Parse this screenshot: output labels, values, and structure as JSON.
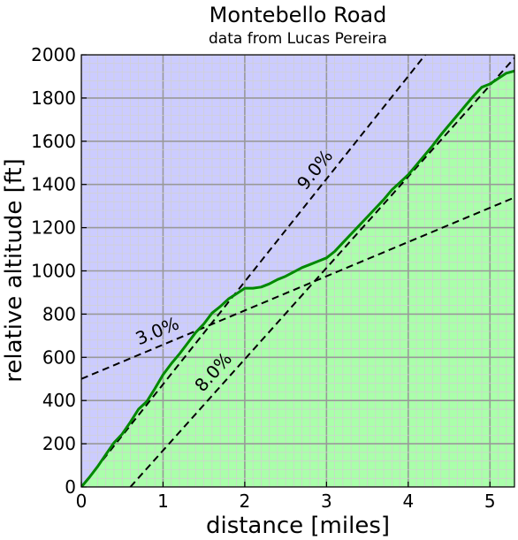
{
  "chart_data": {
    "type": "area",
    "title": "Montebello Road",
    "subtitle": "data from Lucas Pereira",
    "xlabel": "distance [miles]",
    "ylabel": "relative altitude [ft]",
    "xlim": [
      0,
      5.3
    ],
    "ylim": [
      0,
      2000
    ],
    "xticks": [
      0,
      1,
      2,
      3,
      4,
      5
    ],
    "yticks": [
      0,
      200,
      400,
      600,
      800,
      1000,
      1200,
      1400,
      1600,
      1800,
      2000
    ],
    "grid": true,
    "colors": {
      "above_fill": "#ccccff",
      "below_fill": "#aaffaa",
      "profile_line": "#008800",
      "major_grid": "#999999",
      "minor_grid": "#d0d0d0",
      "reference_line": "#000000"
    },
    "series": [
      {
        "x": [
          0,
          0.1,
          0.2,
          0.3,
          0.4,
          0.5,
          0.6,
          0.7,
          0.8,
          0.9,
          1.0,
          1.1,
          1.2,
          1.3,
          1.4,
          1.5,
          1.6,
          1.7,
          1.8,
          1.9,
          2.0,
          2.1,
          2.2,
          2.3,
          2.4,
          2.5,
          2.6,
          2.7,
          2.8,
          2.9,
          3.0,
          3.1,
          3.2,
          3.3,
          3.4,
          3.5,
          3.6,
          3.7,
          3.8,
          3.9,
          4.0,
          4.1,
          4.2,
          4.3,
          4.4,
          4.5,
          4.6,
          4.7,
          4.8,
          4.9,
          5.0,
          5.1,
          5.2,
          5.3
        ],
        "values": [
          0,
          45,
          95,
          150,
          205,
          245,
          300,
          360,
          395,
          455,
          520,
          570,
          615,
          665,
          715,
          755,
          805,
          835,
          870,
          895,
          920,
          920,
          925,
          940,
          960,
          975,
          995,
          1015,
          1030,
          1045,
          1060,
          1090,
          1130,
          1170,
          1210,
          1250,
          1290,
          1330,
          1375,
          1410,
          1445,
          1490,
          1535,
          1580,
          1630,
          1675,
          1720,
          1765,
          1810,
          1850,
          1865,
          1890,
          1915,
          1925
        ]
      }
    ],
    "reference_lines": [
      {
        "label": "3.0%",
        "slope_percent": 3.0,
        "x0": 0,
        "y0": 500,
        "label_x": 1.0,
        "label_offset": 10
      },
      {
        "label": "9.0%",
        "slope_percent": 9.0,
        "x0": 0,
        "y0": 0,
        "label_x": 3.0,
        "label_offset": 10
      },
      {
        "label": "8.0%",
        "slope_percent": 8.0,
        "x0": 0.6,
        "y0": 0,
        "label_x": 1.75,
        "label_offset": 10
      }
    ]
  }
}
